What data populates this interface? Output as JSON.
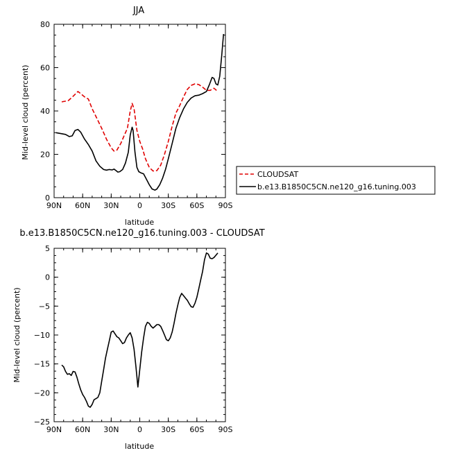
{
  "chart_data": [
    {
      "type": "line",
      "title": "JJA",
      "xlabel": "latitude",
      "ylabel": "Mid-level cloud (percent)",
      "xlim": [
        90,
        -90
      ],
      "ylim": [
        0,
        80
      ],
      "x_ticks": [
        90,
        60,
        30,
        0,
        -30,
        -60,
        -90
      ],
      "x_tick_labels": [
        "90N",
        "60N",
        "30N",
        "0",
        "30S",
        "60S",
        "90S"
      ],
      "y_ticks": [
        0,
        20,
        40,
        60,
        80
      ],
      "y_tick_labels": [
        "0",
        "20",
        "40",
        "60",
        "80"
      ],
      "grid": false,
      "legend_position": "right",
      "series": [
        {
          "name": "CLOUDSAT",
          "color": "#e00000",
          "dash": "dashed",
          "x": [
            82,
            75,
            70,
            65,
            62,
            58,
            54,
            50,
            45,
            40,
            35,
            30,
            27,
            24,
            20,
            16,
            13,
            10,
            8,
            6,
            3,
            0,
            -3,
            -6,
            -10,
            -14,
            -18,
            -22,
            -26,
            -30,
            -34,
            -38,
            -42,
            -46,
            -50,
            -54,
            -58,
            -62,
            -66,
            -70,
            -74,
            -78,
            -82
          ],
          "y": [
            44.2,
            44.8,
            46.8,
            49,
            48,
            46.5,
            45.5,
            41,
            36.5,
            32,
            27,
            23,
            21.5,
            22,
            25,
            29,
            32,
            40,
            43.5,
            41,
            31,
            26,
            22.5,
            18,
            14,
            12.3,
            12.5,
            15,
            20,
            26,
            33,
            39,
            42.5,
            46.5,
            50,
            51.8,
            52.5,
            52.2,
            51,
            49.5,
            49.5,
            50.5,
            49
          ]
        },
        {
          "name": "b.e13.B1850C5CN.ne120_g16.tuning.003",
          "color": "#000000",
          "dash": "solid",
          "x": [
            88,
            82,
            78,
            74,
            71,
            68,
            65,
            62,
            58,
            54,
            50,
            46,
            42,
            38,
            35,
            32,
            29,
            27,
            25,
            23,
            21,
            18,
            15,
            12,
            10,
            8,
            7,
            5,
            3,
            1,
            -1,
            -4,
            -7,
            -10,
            -13,
            -16,
            -18,
            -21,
            -24,
            -27,
            -30,
            -34,
            -38,
            -42,
            -46,
            -50,
            -54,
            -58,
            -62,
            -66,
            -70,
            -73,
            -76,
            -78,
            -80,
            -82,
            -84,
            -86,
            -88
          ],
          "y": [
            30,
            29.5,
            29.2,
            28.2,
            28.5,
            31,
            31.5,
            30.2,
            27,
            24.5,
            21.5,
            17,
            14.5,
            13,
            12.7,
            13,
            12.8,
            13.2,
            12.5,
            11.8,
            12,
            13,
            16,
            21,
            29,
            32.5,
            31,
            21,
            14,
            12,
            11.5,
            11,
            8.5,
            6,
            4,
            3.5,
            4,
            6,
            9,
            13,
            18,
            25,
            32,
            37,
            41,
            44,
            46,
            47,
            47.3,
            48,
            49,
            52,
            55.5,
            55,
            52.5,
            52,
            56,
            65,
            75.5
          ]
        }
      ]
    },
    {
      "type": "line",
      "title": "b.e13.B1850C5CN.ne120_g16.tuning.003 - CLOUDSAT",
      "xlabel": "latitude",
      "ylabel": "Mid-level cloud (percent)",
      "xlim": [
        90,
        -90
      ],
      "ylim": [
        -25,
        5
      ],
      "x_ticks": [
        90,
        60,
        30,
        0,
        -30,
        -60,
        -90
      ],
      "x_tick_labels": [
        "90N",
        "60N",
        "30N",
        "0",
        "30S",
        "60S",
        "90S"
      ],
      "y_ticks": [
        -25,
        -20,
        -15,
        -10,
        -5,
        0,
        5
      ],
      "y_tick_labels": [
        "−25",
        "−20",
        "−15",
        "−10",
        "−5",
        "0",
        "5"
      ],
      "grid": false,
      "series": [
        {
          "color": "#000000",
          "dash": "solid",
          "x": [
            82,
            80,
            78,
            76,
            74,
            72,
            70,
            68,
            66,
            64,
            62,
            60,
            58,
            56,
            54,
            52,
            50,
            48,
            46,
            44,
            42,
            40,
            38,
            36,
            34,
            32,
            30,
            28,
            26,
            24,
            22,
            20,
            18,
            16,
            14,
            12,
            10,
            8,
            6,
            4,
            2,
            0,
            -2,
            -4,
            -6,
            -8,
            -10,
            -12,
            -14,
            -16,
            -18,
            -20,
            -22,
            -24,
            -26,
            -28,
            -30,
            -32,
            -34,
            -36,
            -38,
            -40,
            -42,
            -44,
            -46,
            -48,
            -50,
            -52,
            -54,
            -56,
            -58,
            -60,
            -62,
            -64,
            -66,
            -68,
            -70,
            -72,
            -74,
            -76,
            -78,
            -80,
            -82
          ],
          "y": [
            -15.2,
            -15.5,
            -16.3,
            -16.8,
            -16.7,
            -17,
            -16.3,
            -16.4,
            -17.3,
            -18.5,
            -19.5,
            -20.3,
            -20.8,
            -21.5,
            -22.3,
            -22.5,
            -22,
            -21.2,
            -21,
            -20.8,
            -20,
            -18,
            -16,
            -14,
            -12.5,
            -11,
            -9.5,
            -9.3,
            -9.8,
            -10.3,
            -10.5,
            -11,
            -11.5,
            -11.3,
            -10.5,
            -10,
            -9.6,
            -10.5,
            -12.5,
            -15.5,
            -19,
            -16,
            -13,
            -10.5,
            -8.5,
            -7.8,
            -8,
            -8.5,
            -8.8,
            -8.5,
            -8.2,
            -8.2,
            -8.5,
            -9.2,
            -10,
            -10.8,
            -11,
            -10.5,
            -9.5,
            -8,
            -6.3,
            -4.8,
            -3.5,
            -2.8,
            -3.2,
            -3.6,
            -4,
            -4.6,
            -5.1,
            -5.2,
            -4.5,
            -3.5,
            -2,
            -0.5,
            1,
            3,
            4.2,
            4,
            3.3,
            3.2,
            3.4,
            3.8,
            4.2
          ]
        }
      ]
    }
  ]
}
